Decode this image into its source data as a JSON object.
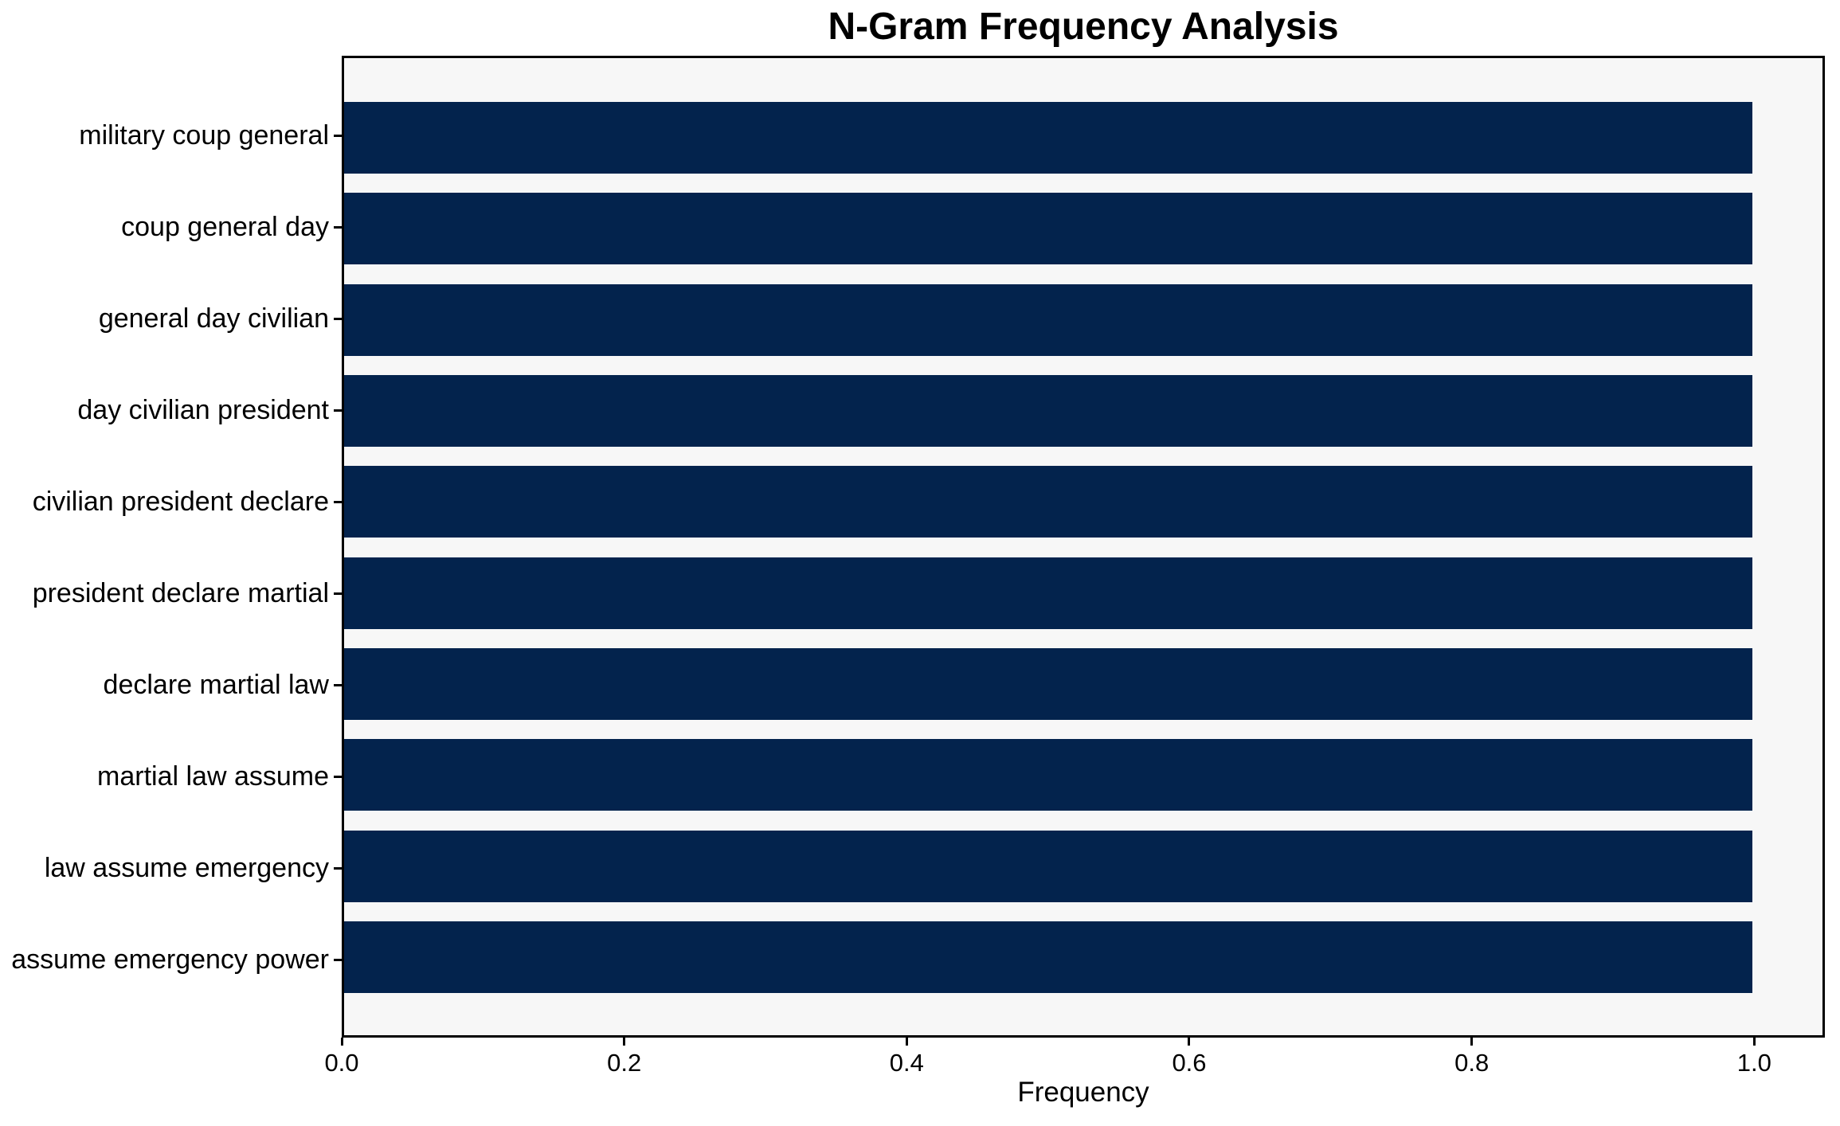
{
  "chart_data": {
    "type": "bar",
    "orientation": "horizontal",
    "title": "N-Gram Frequency Analysis",
    "xlabel": "Frequency",
    "ylabel": "",
    "categories": [
      "military coup general",
      "coup general day",
      "general day civilian",
      "day civilian president",
      "civilian president declare",
      "president declare martial",
      "declare martial law",
      "martial law assume",
      "law assume emergency",
      "assume emergency power"
    ],
    "values": [
      1.0,
      1.0,
      1.0,
      1.0,
      1.0,
      1.0,
      1.0,
      1.0,
      1.0,
      1.0
    ],
    "xlim": [
      0,
      1.05
    ],
    "xticks": [
      0.0,
      0.2,
      0.4,
      0.6,
      0.8,
      1.0
    ],
    "xtick_labels": [
      "0.0",
      "0.2",
      "0.4",
      "0.6",
      "0.8",
      "1.0"
    ],
    "grid": false,
    "legend": null,
    "colors": {
      "bar": "#03234d",
      "plot_bg": "#f7f7f7",
      "figure_bg": "#ffffff",
      "spine": "#000000",
      "text": "#000000"
    }
  }
}
